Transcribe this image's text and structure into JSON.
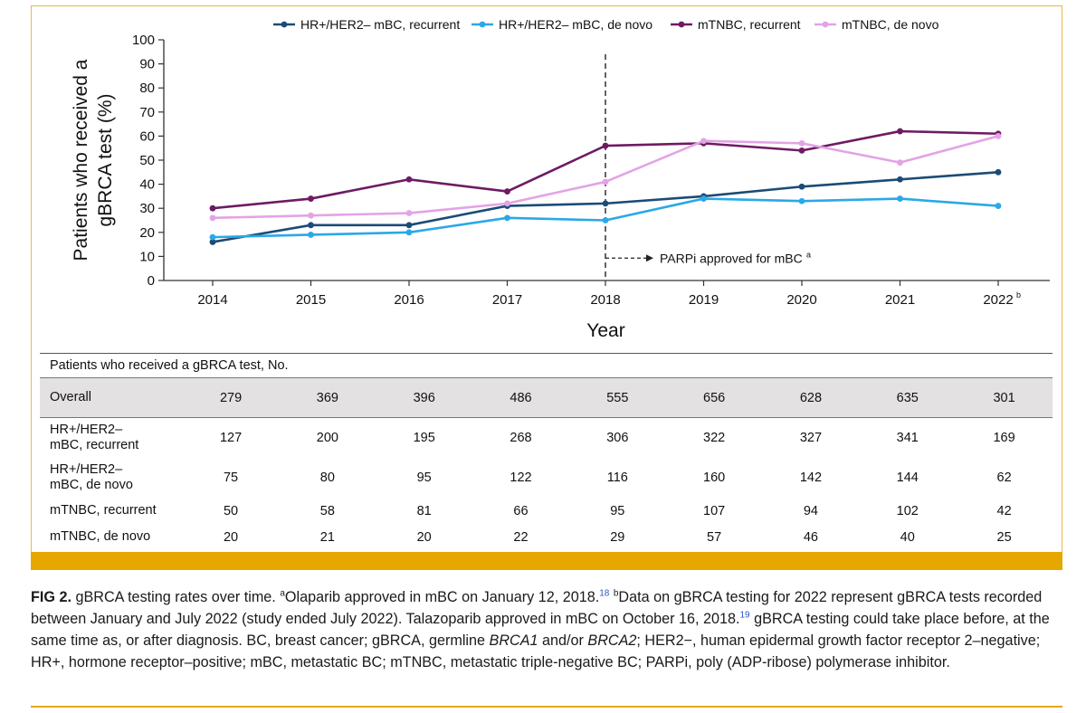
{
  "chart_data": {
    "type": "line",
    "xlabel": "Year",
    "ylabel_lines": [
      "Patients who received a",
      "gBRCA test (%)"
    ],
    "ylim": [
      0,
      100
    ],
    "yticks": [
      0,
      10,
      20,
      30,
      40,
      50,
      60,
      70,
      80,
      90,
      100
    ],
    "categories": [
      "2014",
      "2015",
      "2016",
      "2017",
      "2018",
      "2019",
      "2020",
      "2021",
      "2022"
    ],
    "last_category_superscript": "b",
    "series": [
      {
        "name": "HR+/HER2– mBC, recurrent",
        "color": "#1b4b77",
        "values": [
          16,
          23,
          23,
          31,
          32,
          35,
          39,
          42,
          45
        ]
      },
      {
        "name": "HR+/HER2– mBC, de novo",
        "color": "#2aa8e8",
        "values": [
          18,
          19,
          20,
          26,
          25,
          34,
          33,
          34,
          31
        ]
      },
      {
        "name": "mTNBC, recurrent",
        "color": "#6e1b63",
        "values": [
          30,
          34,
          42,
          37,
          56,
          57,
          54,
          62,
          61
        ]
      },
      {
        "name": "mTNBC, de novo",
        "color": "#e3a3e6",
        "values": [
          26,
          27,
          28,
          32,
          41,
          58,
          57,
          49,
          60
        ]
      }
    ],
    "annotation": {
      "x_category": "2018",
      "text": "PARPi approved for mBC",
      "superscript": "a"
    }
  },
  "table": {
    "header": "Patients who received a gBRCA test, No.",
    "rows": [
      {
        "label_lines": [
          "Overall"
        ],
        "values": [
          "279",
          "369",
          "396",
          "486",
          "555",
          "656",
          "628",
          "635",
          "301"
        ],
        "style": "overall"
      },
      {
        "label_lines": [
          "HR+/HER2–",
          "mBC, recurrent"
        ],
        "values": [
          "127",
          "200",
          "195",
          "268",
          "306",
          "322",
          "327",
          "341",
          "169"
        ],
        "style": "two"
      },
      {
        "label_lines": [
          "HR+/HER2–",
          "mBC, de novo"
        ],
        "values": [
          "75",
          "80",
          "95",
          "122",
          "116",
          "160",
          "142",
          "144",
          "62"
        ],
        "style": "two"
      },
      {
        "label_lines": [
          "mTNBC, recurrent"
        ],
        "values": [
          "50",
          "58",
          "81",
          "66",
          "95",
          "107",
          "94",
          "102",
          "42"
        ],
        "style": "one"
      },
      {
        "label_lines": [
          "mTNBC, de novo"
        ],
        "values": [
          "20",
          "21",
          "20",
          "22",
          "29",
          "57",
          "46",
          "40",
          "25"
        ],
        "style": "one"
      }
    ]
  },
  "caption": {
    "fig_label": "FIG 2.",
    "title": "gBRCA testing rates over time.",
    "note_a_mark": "a",
    "note_a_text": "Olaparib approved in mBC on January 12, 2018.",
    "ref_18": "18",
    "note_b_mark": "b",
    "note_b_text": "Data on gBRCA testing for 2022 represent gBRCA tests recorded between January and July 2022 (study ended July 2022). Talazoparib approved in mBC on October 16, 2018.",
    "ref_19": "19",
    "text_3": "gBRCA testing could take place before, at the same time as, or after diagnosis. BC, breast cancer; gBRCA, germline",
    "brca1": "BRCA1",
    "andor": "and/or",
    "brca2": "BRCA2",
    "text_4": "; HER2−, human epidermal growth factor receptor 2–negative; HR+, hormone receptor–positive; mBC, metastatic BC; mTNBC, metastatic triple-negative BC; PARPi, poly (ADP-ribose) polymerase inhibitor."
  }
}
